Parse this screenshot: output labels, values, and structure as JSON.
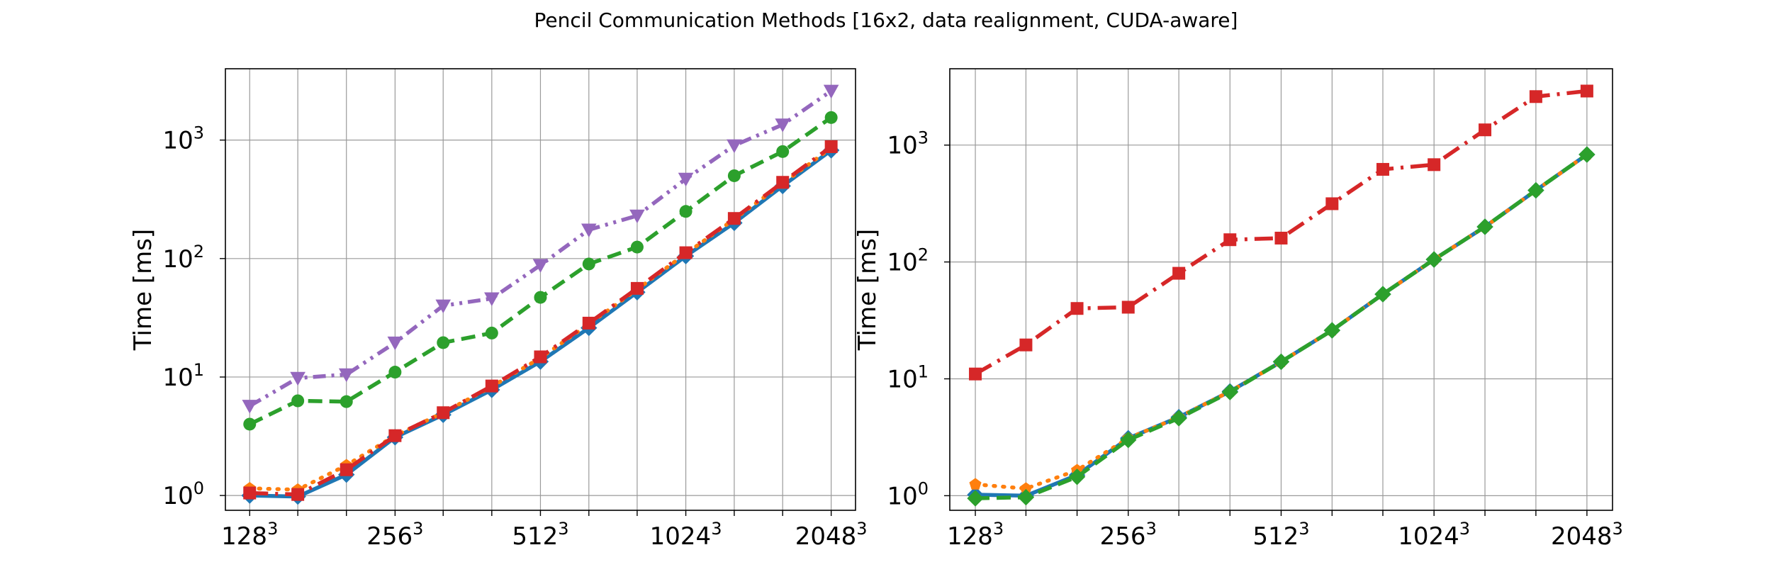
{
  "figure": {
    "suptitle": "Pencil Communication Methods [16x2, data realignment, CUDA-aware]"
  },
  "chart_data": [
    {
      "type": "line",
      "x_ticks": [
        "128",
        "256",
        "512",
        "1024",
        "2048"
      ],
      "x_tick_exponent": "3",
      "x": [
        128,
        161,
        203,
        256,
        322,
        406,
        512,
        645,
        812,
        1024,
        1290,
        1625,
        2048
      ],
      "xscale": "log2",
      "xlim": [
        114,
        2300
      ],
      "ylabel": "Time [ms]",
      "yscale": "log",
      "ylim": [
        0.75,
        4000
      ],
      "y_ticks": [
        {
          "base": "10",
          "exp": "0",
          "value": 1
        },
        {
          "base": "10",
          "exp": "1",
          "value": 10
        },
        {
          "base": "10",
          "exp": "2",
          "value": 100
        },
        {
          "base": "10",
          "exp": "3",
          "value": 1000
        }
      ],
      "grid": true,
      "series": [
        {
          "color": "#1f77b4",
          "dash": "solid",
          "marker": "diamond",
          "values": [
            1.0,
            0.98,
            1.5,
            3.1,
            4.8,
            7.8,
            13.5,
            26,
            52,
            105,
            200,
            410,
            820
          ]
        },
        {
          "color": "#ff7f0e",
          "dash": "dotted",
          "marker": "pentagon",
          "values": [
            1.15,
            1.12,
            1.8,
            3.2,
            5.0,
            8.3,
            14.5,
            28,
            55,
            110,
            215,
            430,
            860
          ]
        },
        {
          "color": "#2ca02c",
          "dash": "dashed",
          "marker": "circle",
          "values": [
            4.0,
            6.3,
            6.2,
            11,
            19.5,
            23.5,
            47,
            90,
            125,
            250,
            500,
            800,
            1550
          ]
        },
        {
          "color": "#d62728",
          "dash": "dashdot",
          "marker": "square",
          "values": [
            1.05,
            1.02,
            1.65,
            3.2,
            5.0,
            8.4,
            14.8,
            28.5,
            56,
            112,
            218,
            440,
            880
          ]
        },
        {
          "color": "#9467bd",
          "dash": "dashdotdot",
          "marker": "triangle-down",
          "values": [
            5.7,
            9.8,
            10.5,
            19.5,
            40,
            46,
            88,
            175,
            230,
            470,
            900,
            1350,
            2600
          ]
        }
      ]
    },
    {
      "type": "line",
      "x_ticks": [
        "128",
        "256",
        "512",
        "1024",
        "2048"
      ],
      "x_tick_exponent": "3",
      "x": [
        128,
        161,
        203,
        256,
        322,
        406,
        512,
        645,
        812,
        1024,
        1290,
        1625,
        2048
      ],
      "xscale": "log2",
      "xlim": [
        114,
        2300
      ],
      "ylabel": "Time [ms]",
      "yscale": "log",
      "ylim": [
        0.75,
        4500
      ],
      "y_ticks": [
        {
          "base": "10",
          "exp": "0",
          "value": 1
        },
        {
          "base": "10",
          "exp": "1",
          "value": 10
        },
        {
          "base": "10",
          "exp": "2",
          "value": 100
        },
        {
          "base": "10",
          "exp": "3",
          "value": 1000
        }
      ],
      "grid": true,
      "series": [
        {
          "color": "#1f77b4",
          "dash": "solid",
          "marker": "diamond",
          "values": [
            1.02,
            1.0,
            1.5,
            3.1,
            4.7,
            7.8,
            14,
            26,
            53,
            105,
            200,
            410,
            830
          ]
        },
        {
          "color": "#ff7f0e",
          "dash": "dotted",
          "marker": "pentagon",
          "values": [
            1.25,
            1.15,
            1.65,
            3.1,
            4.7,
            7.8,
            14,
            26,
            53,
            105,
            200,
            410,
            830
          ]
        },
        {
          "color": "#d62728",
          "dash": "dashdot",
          "marker": "square",
          "values": [
            11,
            19.5,
            40,
            41,
            80,
            155,
            160,
            315,
            620,
            680,
            1350,
            2600,
            2900
          ]
        },
        {
          "color": "#2ca02c",
          "dash": "dashed",
          "marker": "diamond",
          "values": [
            0.95,
            0.97,
            1.45,
            3.0,
            4.6,
            7.7,
            14,
            26,
            53,
            105,
            200,
            410,
            830
          ]
        }
      ]
    }
  ]
}
